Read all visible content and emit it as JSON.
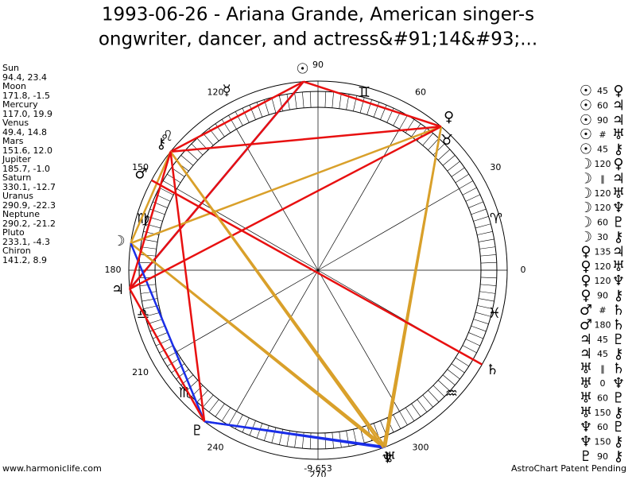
{
  "title_lines": [
    "1993-06-26 - Ariana Grande, American singer-s",
    "ongwriter, dancer, and actress&#91;14&#93;..."
  ],
  "planets": [
    {
      "name": "Sun",
      "position": "94.4, 23.4",
      "glyph": "☉"
    },
    {
      "name": "Moon",
      "position": "171.8, -1.5",
      "glyph": "☽"
    },
    {
      "name": "Mercury",
      "position": "117.0, 19.9",
      "glyph": "☿"
    },
    {
      "name": "Venus",
      "position": "49.4, 14.8",
      "glyph": "♀"
    },
    {
      "name": "Mars",
      "position": "151.6, 12.0",
      "glyph": "♂"
    },
    {
      "name": "Jupiter",
      "position": "185.7, -1.0",
      "glyph": "♃"
    },
    {
      "name": "Saturn",
      "position": "330.1, -12.7",
      "glyph": "♄"
    },
    {
      "name": "Uranus",
      "position": "290.9, -22.3",
      "glyph": "♅"
    },
    {
      "name": "Neptune",
      "position": "290.2, -21.2",
      "glyph": "♆"
    },
    {
      "name": "Pluto",
      "position": "233.1, -4.3",
      "glyph": "♇"
    },
    {
      "name": "Chiron",
      "position": "141.2, 8.9",
      "glyph": "⚷"
    }
  ],
  "aspects": [
    {
      "from": "☉",
      "aspect": 45,
      "to": "♀"
    },
    {
      "from": "☉",
      "aspect": 60,
      "to": "♃"
    },
    {
      "from": "☉",
      "aspect": 90,
      "to": "♃"
    },
    {
      "from": "☉",
      "aspect": "#",
      "to": "♅"
    },
    {
      "from": "☉",
      "aspect": 45,
      "to": "⚷"
    },
    {
      "from": "☽",
      "aspect": 120,
      "to": "♀"
    },
    {
      "from": "☽",
      "aspect": "‖",
      "to": "♃"
    },
    {
      "from": "☽",
      "aspect": 120,
      "to": "♅"
    },
    {
      "from": "☽",
      "aspect": 120,
      "to": "♆"
    },
    {
      "from": "☽",
      "aspect": 60,
      "to": "♇"
    },
    {
      "from": "☽",
      "aspect": 30,
      "to": "⚷"
    },
    {
      "from": "♀",
      "aspect": 135,
      "to": "♃"
    },
    {
      "from": "♀",
      "aspect": 120,
      "to": "♅"
    },
    {
      "from": "♀",
      "aspect": 120,
      "to": "♆"
    },
    {
      "from": "♀",
      "aspect": 90,
      "to": "⚷"
    },
    {
      "from": "♂",
      "aspect": "#",
      "to": "♄"
    },
    {
      "from": "♂",
      "aspect": 180,
      "to": "♄"
    },
    {
      "from": "♃",
      "aspect": 45,
      "to": "♇"
    },
    {
      "from": "♃",
      "aspect": 45,
      "to": "⚷"
    },
    {
      "from": "♅",
      "aspect": "‖",
      "to": "♄"
    },
    {
      "from": "♅",
      "aspect": 0,
      "to": "♆"
    },
    {
      "from": "♅",
      "aspect": 60,
      "to": "♇"
    },
    {
      "from": "♅",
      "aspect": 150,
      "to": "⚷"
    },
    {
      "from": "♆",
      "aspect": 60,
      "to": "♇"
    },
    {
      "from": "♆",
      "aspect": 150,
      "to": "⚷"
    },
    {
      "from": "♇",
      "aspect": 90,
      "to": "⚷"
    }
  ],
  "signs": [
    "♊",
    "♉",
    "♈",
    "♓",
    "♒",
    "♏",
    "♎",
    "♍",
    "♌"
  ],
  "degree_labels": [
    90,
    60,
    30,
    0,
    300,
    270,
    240,
    210,
    180,
    150,
    120
  ],
  "bottom_value": "-9,653",
  "footer_left": "www.harmoniclife.com",
  "footer_right": "AstroChart Patent Pending"
}
